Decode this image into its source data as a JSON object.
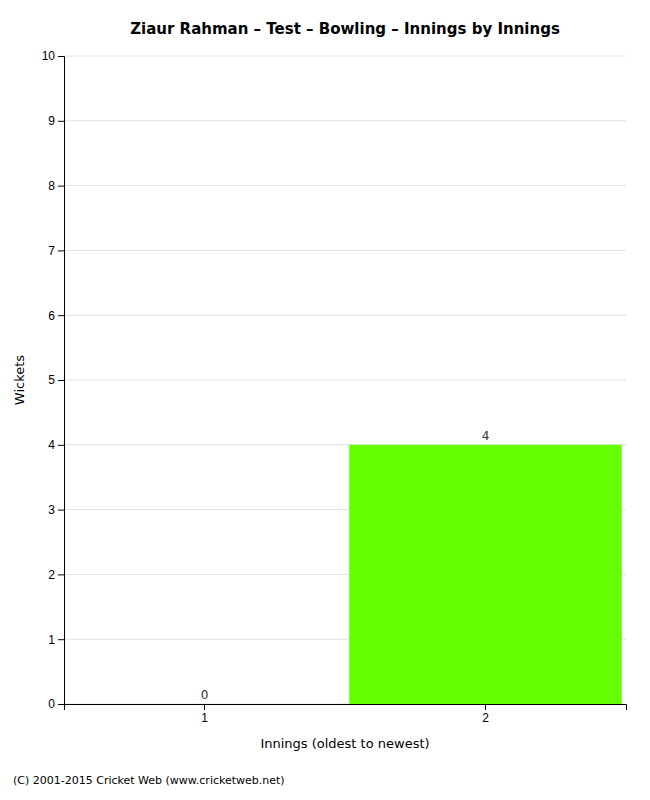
{
  "chart_data": {
    "type": "bar",
    "title": "Ziaur Rahman – Test – Bowling – Innings by Innings",
    "x_label": "Innings (oldest to newest)",
    "y_label": "Wickets",
    "categories": [
      "1",
      "2"
    ],
    "values": [
      0,
      4
    ],
    "color": "#66ff00",
    "ylim": [
      0,
      10
    ],
    "yticks": [
      0,
      1,
      2,
      3,
      4,
      5,
      6,
      7,
      8,
      9,
      10
    ],
    "grid": true,
    "data_labels": true,
    "annotations": [
      "(C) 2001-2015 Cricket Web (www.cricketweb.net)"
    ]
  }
}
